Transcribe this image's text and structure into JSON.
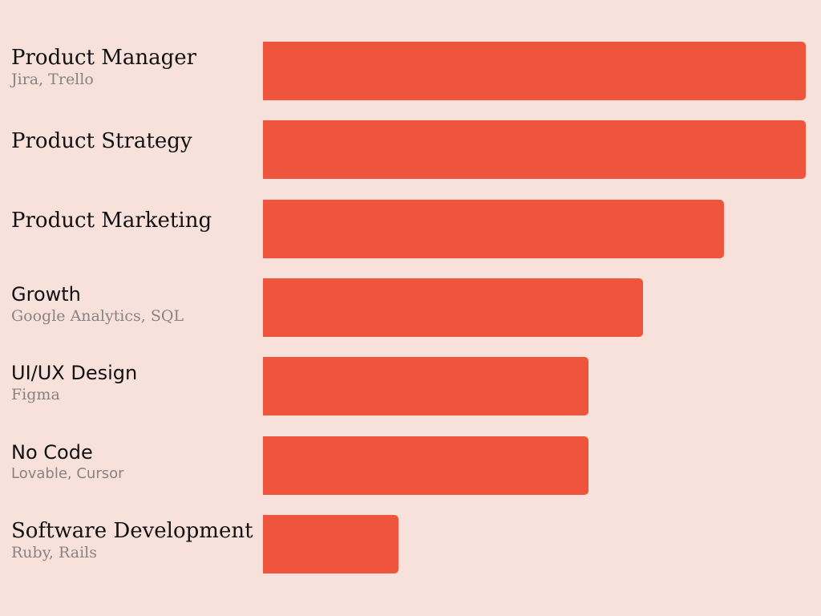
{
  "chart_data": {
    "type": "bar",
    "orientation": "horizontal",
    "bar_color": "#ef543d",
    "background": "#f8e0db",
    "xlim": [
      0,
      100
    ],
    "grid": false,
    "categories": [
      {
        "label": "Product Manager",
        "sublabel": "Jira, Trello",
        "value": 100
      },
      {
        "label": "Product Strategy",
        "sublabel": "",
        "value": 100
      },
      {
        "label": "Product Marketing",
        "sublabel": "",
        "value": 85
      },
      {
        "label": "Growth",
        "sublabel": "Google Analytics, SQL",
        "value": 70
      },
      {
        "label": "UI/UX Design",
        "sublabel": "Figma",
        "value": 60
      },
      {
        "label": "No Code",
        "sublabel": "Lovable, Cursor",
        "value": 60
      },
      {
        "label": "Software Development",
        "sublabel": "Ruby, Rails",
        "value": 25
      }
    ]
  }
}
